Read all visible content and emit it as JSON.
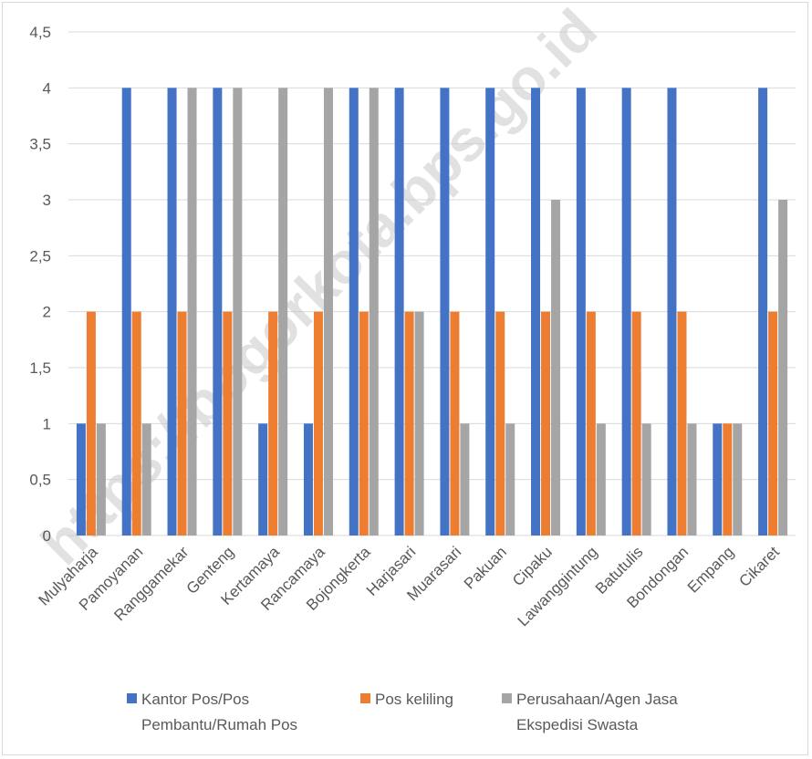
{
  "watermark": "https://bogorkota.bps.go.id",
  "chart_data": {
    "type": "bar",
    "title": "",
    "xlabel": "",
    "ylabel": "",
    "ylim": [
      0,
      4.5
    ],
    "y_ticks": [
      "0",
      "0,5",
      "1",
      "1,5",
      "2",
      "2,5",
      "3",
      "3,5",
      "4",
      "4,5"
    ],
    "grid": true,
    "legend_position": "bottom",
    "categories": [
      "Mulyaharja",
      "Pamoyanan",
      "Ranggamekar",
      "Genteng",
      "Kertamaya",
      "Rancamaya",
      "Bojongkerta",
      "Harjasari",
      "Muarasari",
      "Pakuan",
      "Cipaku",
      "Lawanggintung",
      "Batutulis",
      "Bondongan",
      "Empang",
      "Cikaret"
    ],
    "series": [
      {
        "name": "Kantor Pos/Pos Pembantu/Rumah Pos",
        "legend_lines": [
          "Kantor Pos/Pos",
          "Pembantu/Rumah Pos"
        ],
        "color": "#4472c4",
        "values": [
          1,
          4,
          4,
          4,
          1,
          1,
          4,
          4,
          4,
          4,
          4,
          4,
          4,
          4,
          1,
          4
        ]
      },
      {
        "name": "Pos keliling",
        "legend_lines": [
          "Pos keliling"
        ],
        "color": "#ed7d31",
        "values": [
          2,
          2,
          2,
          2,
          2,
          2,
          2,
          2,
          2,
          2,
          2,
          2,
          2,
          2,
          1,
          2
        ]
      },
      {
        "name": "Perusahaan/Agen Jasa Ekspedisi Swasta",
        "legend_lines": [
          "Perusahaan/Agen Jasa",
          "Ekspedisi Swasta"
        ],
        "color": "#a5a5a5",
        "values": [
          1,
          1,
          4,
          4,
          4,
          4,
          4,
          2,
          1,
          1,
          3,
          1,
          1,
          1,
          1,
          3
        ]
      }
    ]
  }
}
